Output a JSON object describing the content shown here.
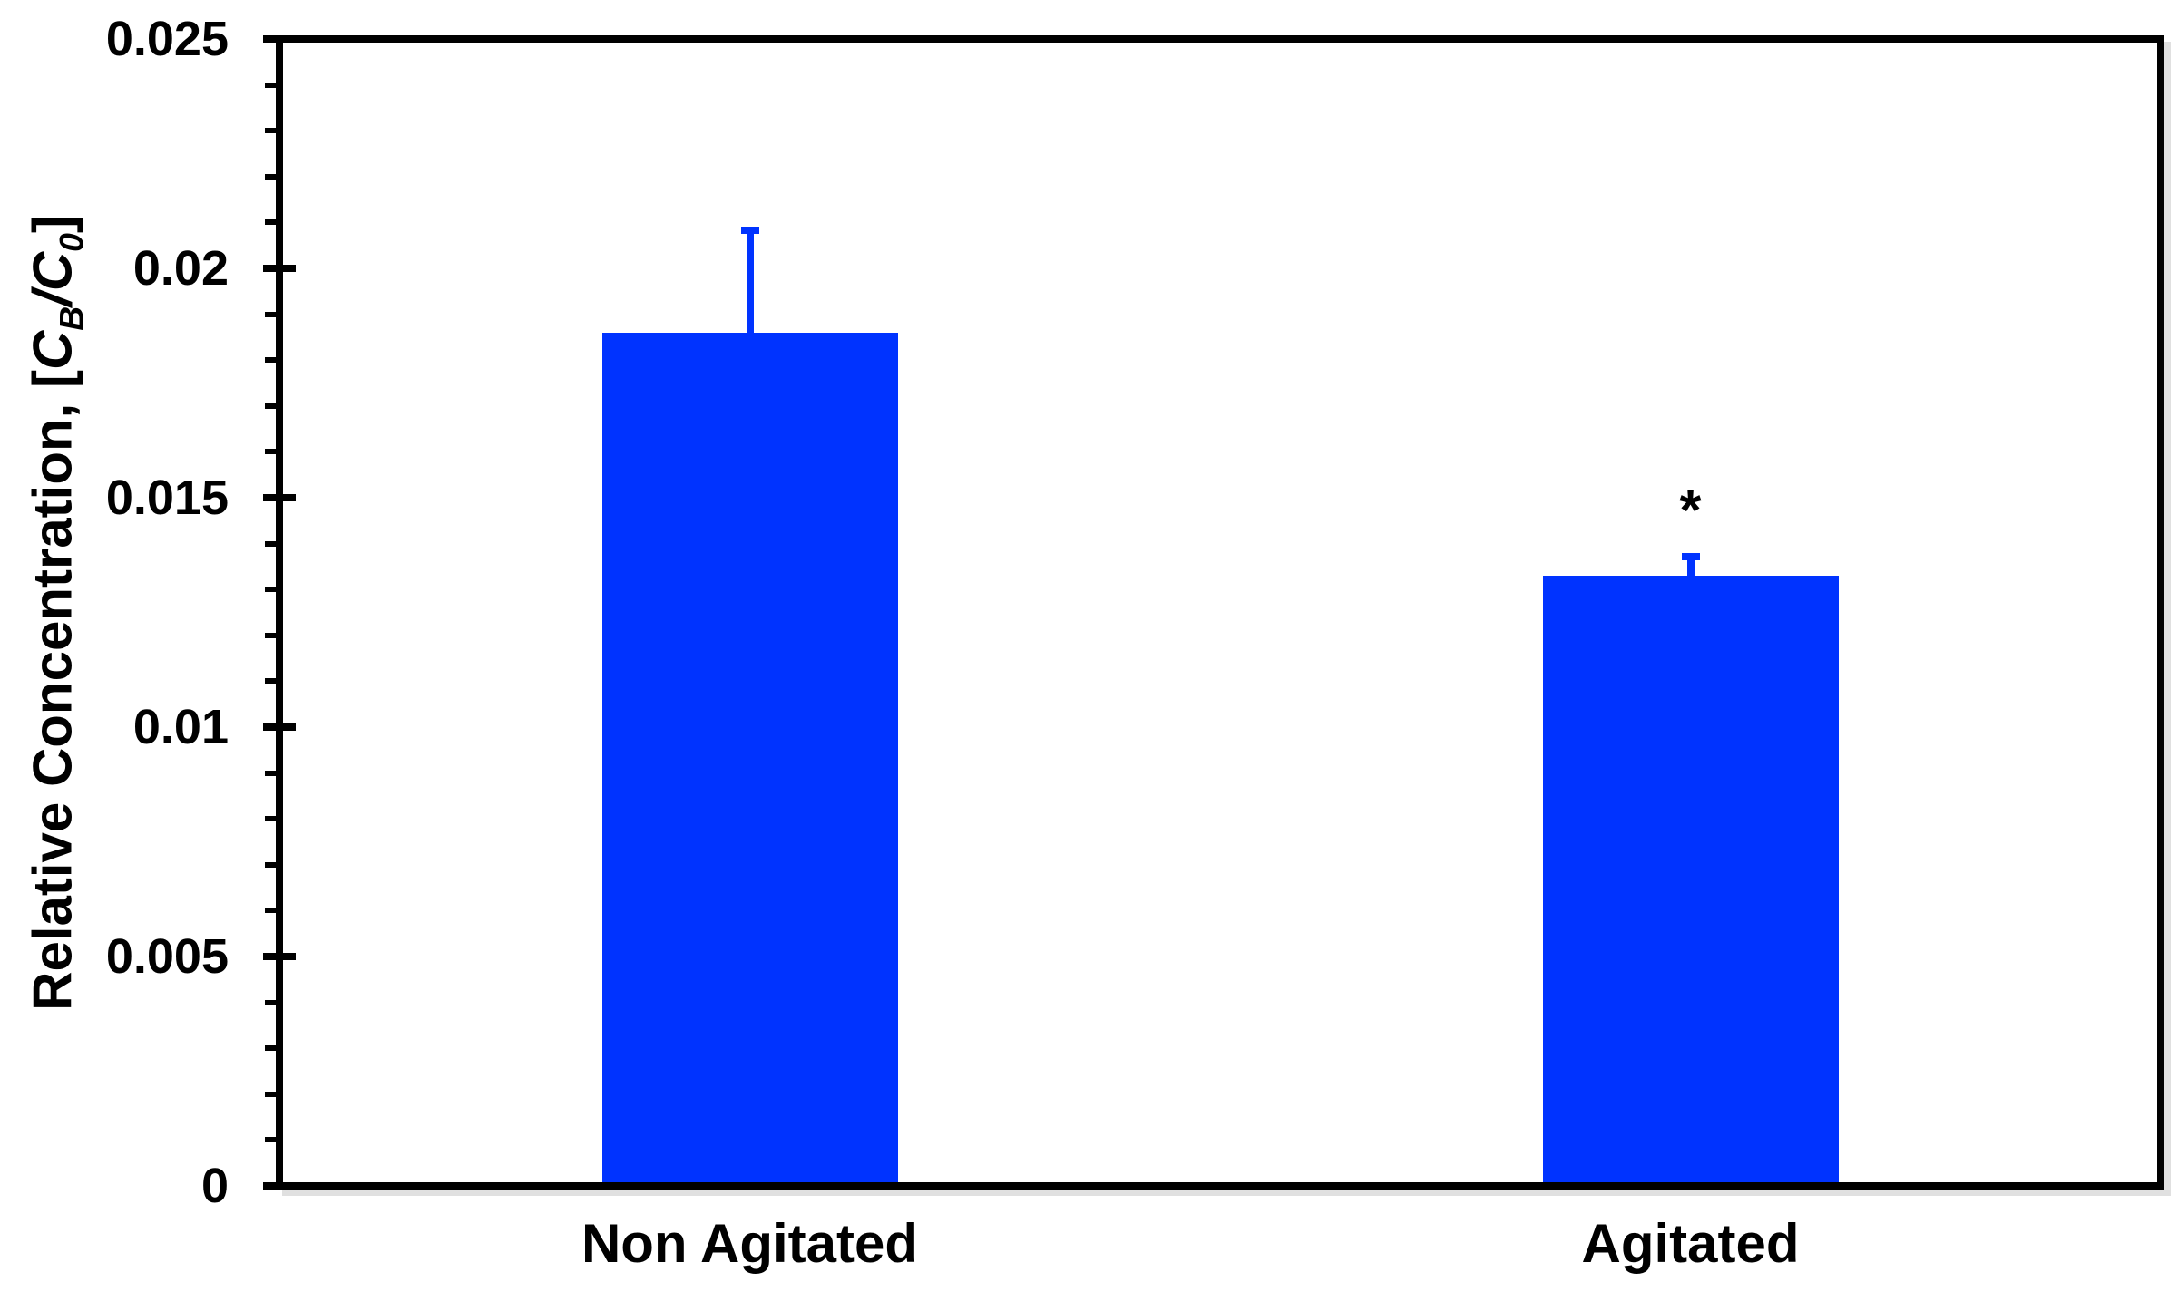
{
  "figure": {
    "background_color": "#ffffff",
    "bar_color": "#0033ff",
    "axis_color": "#000000",
    "text_color": "#000000",
    "shadow_color": "#e0e0e0"
  },
  "ylabel": {
    "prefix": "Relative Concentration, [",
    "term1_main": "C",
    "term1_sub": "B",
    "divider": "/",
    "term2_main": "C",
    "term2_sub": "0",
    "suffix": "]"
  },
  "chart_data": {
    "type": "bar",
    "title": "",
    "xlabel": "",
    "ylabel": "Relative Concentration, [C_B/C_0]",
    "categories": [
      "Non Agitated",
      "Agitated"
    ],
    "values": [
      0.0186,
      0.0133
    ],
    "errors": [
      0.0023,
      0.0005
    ],
    "error_direction": "positive-only",
    "annotations": [
      {
        "category": "Agitated",
        "symbol": "*"
      }
    ],
    "ylim": [
      0,
      0.025
    ],
    "yticks": [
      0,
      0.005,
      0.01,
      0.015,
      0.02,
      0.025
    ],
    "ytick_labels": [
      "0",
      "0.005",
      "0.01",
      "0.015",
      "0.02",
      "0.025"
    ],
    "minor_tick_step": 0.001,
    "major_tick_step": 0.005,
    "grid": false,
    "legend": false,
    "bar_color": "#0033ff"
  }
}
